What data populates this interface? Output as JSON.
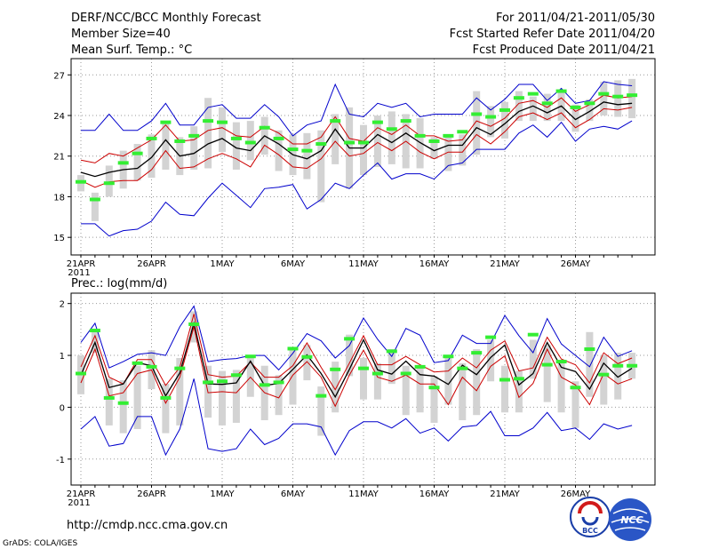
{
  "header": {
    "title": "DERF/NCC/BCC Monthly Forecast",
    "member_size": "Member Size=40",
    "variable": "Mean Surf. Temp.: °C",
    "period": "For 2011/04/21-2011/05/30",
    "fcst_started": "Fcst Started Refer Date 2011/04/20",
    "fcst_produced": "Fcst Produced Date 2011/04/21"
  },
  "footer": {
    "url": "http://cmdp.ncc.cma.gov.cn",
    "grads_credit": "GrADS: COLA/IGES",
    "logo_bcc": "BCC",
    "logo_ncc": "NCC"
  },
  "colors": {
    "min_max": "#0000cc",
    "spread": "#cc0000",
    "mean": "#000000",
    "box": "#d3d3d3",
    "observed": "#33ee33",
    "grid": "#999999"
  },
  "chart_data": [
    {
      "type": "line",
      "title": "Mean Surf. Temp.: °C",
      "xlabel": "",
      "ylabel": "°C",
      "ylim": [
        13.7,
        28.2
      ],
      "yticks": [
        15,
        18,
        21,
        24,
        27
      ],
      "x_tick_labels": [
        "21APR\n2011",
        "26APR",
        "1MAY",
        "6MAY",
        "11MAY",
        "16MAY",
        "21MAY",
        "26MAY"
      ],
      "x_tick_days": [
        0,
        5,
        10,
        15,
        20,
        25,
        30,
        35
      ],
      "days": 40,
      "grid": true,
      "series": [
        {
          "name": "max",
          "values": [
            22.9,
            22.9,
            24.1,
            22.9,
            22.9,
            23.6,
            24.9,
            23.3,
            23.3,
            24.6,
            24.8,
            23.8,
            23.8,
            24.8,
            23.9,
            22.5,
            23.3,
            23.6,
            26.3,
            24.1,
            23.9,
            24.9,
            24.6,
            24.9,
            23.9,
            24.1,
            24.1,
            24.1,
            25.3,
            24.4,
            25.2,
            26.3,
            26.3,
            25.1,
            26.0,
            24.9,
            25.1,
            26.5,
            26.3,
            26.2
          ]
        },
        {
          "name": "upper",
          "values": [
            20.7,
            20.5,
            21.2,
            21.0,
            21.6,
            22.2,
            23.3,
            22.1,
            22.2,
            22.9,
            23.1,
            22.5,
            22.4,
            23.2,
            22.7,
            21.9,
            21.9,
            22.4,
            23.9,
            22.3,
            22.1,
            23.1,
            22.6,
            23.3,
            22.5,
            22.5,
            22.1,
            22.2,
            23.6,
            23.2,
            23.8,
            24.9,
            25.1,
            24.6,
            25.3,
            24.3,
            24.8,
            25.5,
            25.3,
            25.4
          ]
        },
        {
          "name": "mean",
          "values": [
            19.8,
            19.5,
            19.8,
            20.0,
            20.1,
            20.9,
            22.2,
            21.0,
            21.2,
            21.9,
            22.3,
            21.6,
            21.4,
            22.5,
            21.9,
            21.1,
            20.8,
            21.4,
            23.0,
            21.6,
            21.6,
            22.6,
            22.0,
            22.7,
            22.0,
            21.4,
            21.8,
            21.8,
            23.1,
            22.6,
            23.4,
            24.3,
            24.7,
            24.2,
            24.7,
            23.7,
            24.3,
            25.0,
            24.8,
            24.9
          ]
        },
        {
          "name": "lower",
          "values": [
            19.2,
            18.7,
            19.1,
            19.2,
            19.2,
            20.0,
            21.4,
            20.1,
            20.2,
            20.8,
            21.2,
            20.8,
            20.2,
            21.8,
            21.1,
            20.2,
            20.1,
            20.8,
            22.1,
            21.0,
            21.2,
            22.0,
            21.4,
            22.1,
            21.3,
            20.8,
            21.3,
            21.3,
            22.6,
            21.9,
            22.8,
            23.9,
            24.2,
            23.7,
            24.2,
            23.1,
            23.7,
            24.5,
            24.4,
            24.6
          ]
        },
        {
          "name": "min",
          "values": [
            16.0,
            16.0,
            15.1,
            15.5,
            15.6,
            16.2,
            17.6,
            16.7,
            16.6,
            17.9,
            19.0,
            18.1,
            17.2,
            18.6,
            18.7,
            18.9,
            17.1,
            17.8,
            19.0,
            18.6,
            19.6,
            20.5,
            19.3,
            19.7,
            19.7,
            19.3,
            20.3,
            20.5,
            21.5,
            21.5,
            21.5,
            22.7,
            23.3,
            22.4,
            23.5,
            22.1,
            23.0,
            23.2,
            23.0,
            23.6
          ]
        },
        {
          "name": "observed",
          "values": [
            19.1,
            17.8,
            19.0,
            20.5,
            21.2,
            22.3,
            23.5,
            22.1,
            22.5,
            23.6,
            23.5,
            22.3,
            22.0,
            23.1,
            22.3,
            21.5,
            21.4,
            21.9,
            23.6,
            22.0,
            22.0,
            23.5,
            23.0,
            23.6,
            22.5,
            22.1,
            22.5,
            22.8,
            24.1,
            23.9,
            24.4,
            25.3,
            25.6,
            24.9,
            25.8,
            24.6,
            24.9,
            25.6,
            25.4,
            25.5
          ]
        }
      ],
      "boxes": [
        [
          18.4,
          19.6
        ],
        [
          16.2,
          18.3
        ],
        [
          18.0,
          20.3
        ],
        [
          18.6,
          21.4
        ],
        [
          19.2,
          21.9
        ],
        [
          19.4,
          22.6
        ],
        [
          20.0,
          23.6
        ],
        [
          19.6,
          22.4
        ],
        [
          20.0,
          23.2
        ],
        [
          20.1,
          25.3
        ],
        [
          21.3,
          24.6
        ],
        [
          20.0,
          23.5
        ],
        [
          20.7,
          23.6
        ],
        [
          21.1,
          23.9
        ],
        [
          19.9,
          22.9
        ],
        [
          19.6,
          22.6
        ],
        [
          19.3,
          22.7
        ],
        [
          17.6,
          22.9
        ],
        [
          20.4,
          24.1
        ],
        [
          18.6,
          24.6
        ],
        [
          19.6,
          23.3
        ],
        [
          20.2,
          24.0
        ],
        [
          20.4,
          24.3
        ],
        [
          20.1,
          24.1
        ],
        [
          20.1,
          23.8
        ],
        [
          20.8,
          22.4
        ],
        [
          19.9,
          22.6
        ],
        [
          20.3,
          22.6
        ],
        [
          21.1,
          25.8
        ],
        [
          22.4,
          24.7
        ],
        [
          22.3,
          25.0
        ],
        [
          23.6,
          25.8
        ],
        [
          23.6,
          25.4
        ],
        [
          23.6,
          25.6
        ],
        [
          23.6,
          25.8
        ],
        [
          22.8,
          24.8
        ],
        [
          23.6,
          25.2
        ],
        [
          24.0,
          26.5
        ],
        [
          23.9,
          26.6
        ],
        [
          23.8,
          26.7
        ]
      ]
    },
    {
      "type": "line",
      "title": "Prec.: log(mm/d)",
      "xlabel": "",
      "ylabel": "log(mm/d)",
      "ylim": [
        -1.5,
        2.2
      ],
      "yticks": [
        -1,
        0,
        1,
        2
      ],
      "x_tick_labels": [
        "21APR\n2011",
        "26APR",
        "1MAY",
        "6MAY",
        "11MAY",
        "16MAY",
        "21MAY",
        "26MAY"
      ],
      "x_tick_days": [
        0,
        5,
        10,
        15,
        20,
        25,
        30,
        35
      ],
      "days": 40,
      "grid": true,
      "series": [
        {
          "name": "max",
          "values": [
            1.25,
            1.62,
            0.76,
            0.88,
            1.02,
            1.05,
            1.0,
            1.55,
            1.95,
            0.88,
            0.92,
            0.94,
            1.0,
            1.0,
            0.72,
            1.04,
            1.42,
            1.28,
            0.95,
            1.19,
            1.72,
            1.31,
            0.98,
            1.52,
            1.39,
            0.86,
            0.9,
            1.39,
            1.23,
            1.23,
            1.77,
            1.38,
            1.05,
            1.71,
            1.22,
            1.0,
            0.78,
            1.35,
            0.98,
            1.09
          ]
        },
        {
          "name": "upper",
          "values": [
            0.78,
            1.38,
            0.58,
            0.45,
            0.92,
            0.92,
            0.42,
            0.77,
            1.8,
            0.63,
            0.58,
            0.6,
            0.87,
            0.58,
            0.58,
            0.8,
            1.24,
            0.77,
            0.34,
            0.85,
            1.38,
            0.82,
            0.82,
            0.98,
            0.82,
            0.68,
            0.7,
            0.95,
            0.76,
            1.1,
            1.28,
            0.7,
            0.76,
            1.35,
            0.93,
            0.82,
            0.47,
            1.05,
            0.84,
            0.95
          ]
        },
        {
          "name": "mean",
          "values": [
            0.62,
            1.25,
            0.38,
            0.45,
            0.86,
            0.8,
            0.22,
            0.66,
            1.62,
            0.45,
            0.44,
            0.47,
            0.89,
            0.42,
            0.46,
            0.73,
            1.01,
            0.65,
            0.2,
            0.73,
            1.3,
            0.72,
            0.64,
            0.89,
            0.63,
            0.6,
            0.44,
            0.81,
            0.63,
            0.96,
            1.2,
            0.43,
            0.65,
            1.25,
            0.77,
            0.69,
            0.35,
            0.85,
            0.58,
            0.75
          ]
        },
        {
          "name": "lower",
          "values": [
            0.47,
            1.12,
            0.22,
            0.28,
            0.65,
            0.72,
            0.08,
            0.58,
            1.55,
            0.28,
            0.3,
            0.28,
            0.58,
            0.28,
            0.18,
            0.62,
            0.88,
            0.58,
            0.02,
            0.62,
            1.1,
            0.58,
            0.5,
            0.62,
            0.45,
            0.45,
            0.05,
            0.58,
            0.32,
            0.79,
            0.99,
            0.19,
            0.46,
            1.12,
            0.58,
            0.43,
            0.05,
            0.65,
            0.45,
            0.55
          ]
        },
        {
          "name": "min",
          "values": [
            -0.42,
            -0.18,
            -0.75,
            -0.7,
            -0.18,
            -0.18,
            -0.92,
            -0.42,
            0.55,
            -0.8,
            -0.85,
            -0.8,
            -0.42,
            -0.72,
            -0.6,
            -0.32,
            -0.32,
            -0.38,
            -0.92,
            -0.45,
            -0.28,
            -0.28,
            -0.4,
            -0.22,
            -0.5,
            -0.4,
            -0.65,
            -0.38,
            -0.35,
            -0.08,
            -0.55,
            -0.55,
            -0.4,
            -0.1,
            -0.45,
            -0.4,
            -0.62,
            -0.32,
            -0.42,
            -0.35
          ]
        },
        {
          "name": "observed",
          "values": [
            0.65,
            1.48,
            0.18,
            0.08,
            0.85,
            0.78,
            0.18,
            0.75,
            1.6,
            0.48,
            0.5,
            0.62,
            0.98,
            0.43,
            0.48,
            1.13,
            0.97,
            0.22,
            0.73,
            1.32,
            0.75,
            0.65,
            1.08,
            0.65,
            0.78,
            0.38,
            0.98,
            0.75,
            1.05,
            1.35,
            0.53,
            0.55,
            1.4,
            0.82,
            0.88,
            0.38,
            1.12,
            0.63,
            0.8,
            0.8
          ]
        }
      ],
      "boxes": [
        [
          0.25,
          1.0
        ],
        [
          1.05,
          1.45
        ],
        [
          -0.35,
          0.55
        ],
        [
          -0.5,
          0.52
        ],
        [
          -0.42,
          0.8
        ],
        [
          0.35,
          1.1
        ],
        [
          -0.5,
          0.45
        ],
        [
          -0.35,
          0.95
        ],
        [
          1.25,
          1.85
        ],
        [
          -0.2,
          0.8
        ],
        [
          -0.35,
          0.7
        ],
        [
          -0.3,
          0.72
        ],
        [
          0.2,
          0.95
        ],
        [
          -0.25,
          0.8
        ],
        [
          -0.15,
          0.62
        ],
        [
          0.05,
          1.15
        ],
        [
          0.52,
          1.2
        ],
        [
          -0.55,
          0.4
        ],
        [
          -0.1,
          0.88
        ],
        [
          0.6,
          1.4
        ],
        [
          0.15,
          0.95
        ],
        [
          0.15,
          0.85
        ],
        [
          0.45,
          1.12
        ],
        [
          -0.15,
          0.8
        ],
        [
          -0.1,
          0.8
        ],
        [
          -0.3,
          0.6
        ],
        [
          0.05,
          1.0
        ],
        [
          -0.25,
          0.85
        ],
        [
          -0.15,
          1.12
        ],
        [
          0.5,
          1.3
        ],
        [
          -0.1,
          0.8
        ],
        [
          -0.1,
          0.7
        ],
        [
          0.55,
          1.3
        ],
        [
          0.1,
          1.2
        ],
        [
          -0.1,
          0.85
        ],
        [
          -0.4,
          0.5
        ],
        [
          0.2,
          1.45
        ],
        [
          0.05,
          1.0
        ],
        [
          0.15,
          1.05
        ],
        [
          0.55,
          1.05
        ]
      ]
    }
  ]
}
